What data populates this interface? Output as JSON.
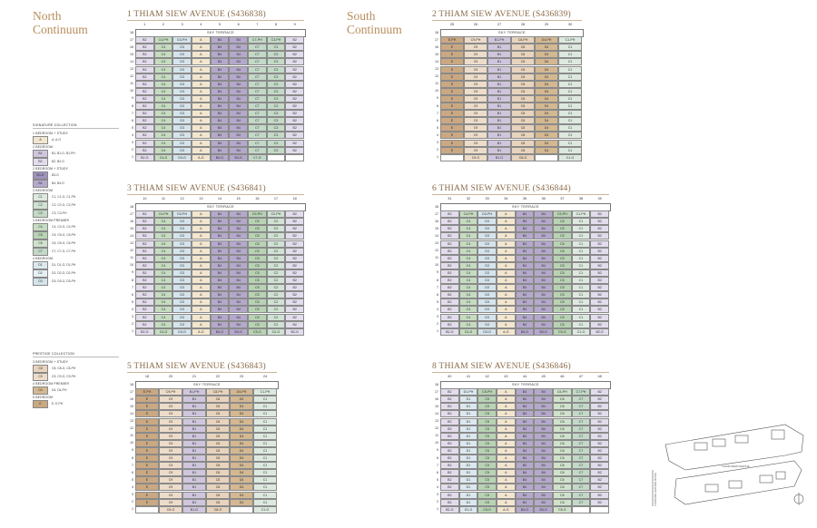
{
  "headings": {
    "north": "North\nContinuum",
    "south": "South\nContinuum"
  },
  "legend": {
    "sig_title": "SIGNATURE COLLECTION",
    "prestige_title": "PRESTIGE COLLECTION",
    "signature": [
      {
        "cat": "1 BEDROOM + STUDY",
        "items": [
          {
            "code": "A",
            "text": "A, A-G",
            "color": "#f3e6cf"
          }
        ]
      },
      {
        "cat": "2 BEDROOM",
        "items": [
          {
            "code": "B1",
            "text": "B1, B1-G, B1-PH",
            "color": "#cfc6dd"
          },
          {
            "code": "B2",
            "text": "B2, B2-G",
            "color": "#e2dcec"
          }
        ]
      },
      {
        "cat": "2 BEDROOM + STUDY",
        "items": [
          {
            "code": "B3-G",
            "text": "B3-G",
            "color": "#9f93bd"
          },
          {
            "code": "B4",
            "text": "B4, B4-G",
            "color": "#b4a9cb"
          }
        ]
      },
      {
        "cat": "3 BEDROOM",
        "items": [
          {
            "code": "C1",
            "text": "C1, C1-G, C1-PH",
            "color": "#dde9df"
          },
          {
            "code": "C2",
            "text": "C2, C2-G, C2-PH",
            "color": "#d0e2d3"
          },
          {
            "code": "C3",
            "text": "C3, C3-PH",
            "color": "#c3dac6"
          }
        ]
      },
      {
        "cat": "3 BEDROOM PREMIER",
        "items": [
          {
            "code": "C4",
            "text": "C4, C4-G, C4-PH",
            "color": "#c5dcc0"
          },
          {
            "code": "C5",
            "text": "C5, C5-G, C5-PH",
            "color": "#b8d3b3"
          },
          {
            "code": "C6",
            "text": "C6, C6-G, C6-PH",
            "color": "#cfe2cb"
          },
          {
            "code": "C7",
            "text": "C7, C7-G, C7-PH",
            "color": "#c3d9c8"
          }
        ]
      },
      {
        "cat": "4 BEDROOM",
        "items": [
          {
            "code": "D1",
            "text": "D1, D1-G, D1-PH",
            "color": "#dbe8ef"
          },
          {
            "code": "D2",
            "text": "D2, D2-G, D2-PH",
            "color": "#e6eff4"
          },
          {
            "code": "D3",
            "text": "D3, D3-G, D3-PH",
            "color": "#d5e4ec"
          }
        ]
      }
    ],
    "prestige": [
      {
        "cat": "3 BEDROOM + STUDY",
        "items": [
          {
            "code": "C8",
            "text": "C8, C8-G, C8-PH",
            "color": "#e8d3bd"
          },
          {
            "code": "C9",
            "text": "C9, C9-G, C9-PH",
            "color": "#eddcc9"
          }
        ]
      },
      {
        "cat": "4 BEDROOM PREMIER",
        "items": [
          {
            "code": "D4",
            "text": "D4, D4-PH",
            "color": "#d4b891"
          }
        ]
      },
      {
        "cat": "5 BEDROOM",
        "items": [
          {
            "code": "E",
            "text": "E, E-PH",
            "color": "#c9a882"
          }
        ]
      }
    ]
  },
  "sky_terrace": "SKY TERRACE",
  "floors": [
    "18",
    "17",
    "16",
    "15",
    "14",
    "13",
    "12",
    "11",
    "10",
    "9",
    "8",
    "7",
    "6",
    "5",
    "4",
    "3",
    "2",
    "1"
  ],
  "blocks": [
    {
      "title": "1 THIAM SIEW AVENUE (S436838)",
      "cols": [
        "1",
        "2",
        "3",
        "4",
        "5",
        "6",
        "7",
        "8",
        "9"
      ],
      "top": [
        "B2",
        "C4-PH",
        "D3-PH",
        "A",
        "B4",
        "B4",
        "C7-PH",
        "C3-PH",
        "B2"
      ],
      "mid": [
        "B2",
        "C4",
        "D3",
        "A",
        "B4",
        "B4",
        "C7",
        "C3",
        "B2"
      ],
      "bottom": [
        "B2-G",
        "C4-G",
        "D3-G",
        "A-G",
        "B4-G",
        "B3-G",
        "C7-G",
        "",
        ""
      ],
      "colors": [
        "#e2dcec",
        "#c5dcc0",
        "#d5e4ec",
        "#f3e6cf",
        "#b4a9cb",
        "#b4a9cb",
        "#c3d9c8",
        "#c3dac6",
        "#e2dcec"
      ]
    },
    {
      "title": "3 THIAM SIEW AVENUE (S436841)",
      "cols": [
        "10",
        "11",
        "12",
        "13",
        "14",
        "15",
        "16",
        "17",
        "18"
      ],
      "top": [
        "B2",
        "C4-PH",
        "D3-PH",
        "A",
        "B4",
        "B4",
        "C5-PH",
        "C2-PH",
        "B2"
      ],
      "mid": [
        "B2",
        "C4",
        "D3",
        "A",
        "B4",
        "B4",
        "C5",
        "C2",
        "B2"
      ],
      "bottom": [
        "B2-G",
        "C4-G",
        "D3-G",
        "A-G",
        "B4-G",
        "B3-G",
        "C5-G",
        "C2-G",
        "B2-G"
      ],
      "colors": [
        "#e2dcec",
        "#c5dcc0",
        "#d5e4ec",
        "#f3e6cf",
        "#b4a9cb",
        "#b4a9cb",
        "#b8d3b3",
        "#d0e2d3",
        "#e2dcec"
      ]
    },
    {
      "title": "5 THIAM SIEW AVENUE (S436843)",
      "cols": [
        "18",
        "20",
        "21",
        "22",
        "23",
        "24"
      ],
      "top": [
        "E-PH",
        "C9-PH",
        "B1-PH",
        "C8-PH",
        "D4-PH",
        "C1-PH"
      ],
      "mid": [
        "E",
        "C9",
        "B1",
        "C8",
        "D4",
        "C1"
      ],
      "bottom": [
        "",
        "C9-G",
        "B1-G",
        "C8-G",
        "",
        "C1-G"
      ],
      "colors": [
        "#c9a882",
        "#eddcc9",
        "#cfc6dd",
        "#e8d3bd",
        "#d4b891",
        "#dde9df"
      ]
    },
    {
      "title": "2 THIAM SIEW AVENUE (S436839)",
      "cols": [
        "25",
        "26",
        "27",
        "28",
        "29",
        "30"
      ],
      "top": [
        "E-PH",
        "C9-PH",
        "B1-PH",
        "C8-PH",
        "D4-PH",
        "C1-PH"
      ],
      "mid": [
        "E",
        "C9",
        "B1",
        "C8",
        "D4",
        "C1"
      ],
      "bottom": [
        "",
        "C9-G",
        "B1-G",
        "C8-G",
        "",
        "C1-G"
      ],
      "colors": [
        "#c9a882",
        "#eddcc9",
        "#cfc6dd",
        "#e8d3bd",
        "#d4b891",
        "#dde9df"
      ]
    },
    {
      "title": "6 THIAM SIEW AVENUE (S436844)",
      "cols": [
        "31",
        "32",
        "33",
        "34",
        "35",
        "36",
        "37",
        "38",
        "39"
      ],
      "top": [
        "B2",
        "C4-PH",
        "D3-PH",
        "A",
        "B4",
        "B4",
        "C5-PH",
        "C1-PH",
        "B2"
      ],
      "mid": [
        "B2",
        "C4",
        "D3",
        "A",
        "B4",
        "B4",
        "C5",
        "C1",
        "B2"
      ],
      "bottom": [
        "B2-G",
        "C4-G",
        "D3-G",
        "A-G",
        "B4-G",
        "B3-G",
        "C5-G",
        "C1-G",
        "B2-G"
      ],
      "colors": [
        "#e2dcec",
        "#c5dcc0",
        "#d5e4ec",
        "#f3e6cf",
        "#b4a9cb",
        "#b4a9cb",
        "#b8d3b3",
        "#dde9df",
        "#e2dcec"
      ]
    },
    {
      "title": "8 THIAM SIEW AVENUE (S436846)",
      "cols": [
        "40",
        "41",
        "42",
        "43",
        "44",
        "45",
        "46",
        "47",
        "48"
      ],
      "top": [
        "B2",
        "D1-PH",
        "C5-PH",
        "A",
        "B4",
        "B4",
        "C6-PH",
        "C7-PH",
        "B2"
      ],
      "mid": [
        "B2",
        "D1",
        "C5",
        "A",
        "B4",
        "B4",
        "C6",
        "C7",
        "B2"
      ],
      "bottom": [
        "B2-G",
        "D1-G",
        "C5-G",
        "A-G",
        "B4-G",
        "B3-G",
        "C6-G",
        "",
        ""
      ],
      "colors": [
        "#e2dcec",
        "#dbe8ef",
        "#b8d3b3",
        "#f3e6cf",
        "#b4a9cb",
        "#b4a9cb",
        "#cfe2cb",
        "#c3d9c8",
        "#e2dcec"
      ]
    }
  ],
  "map_labels": {
    "road_a": "THIAM SIEW AVENUE",
    "road_b": "TANJONG KATONG ROAD"
  }
}
